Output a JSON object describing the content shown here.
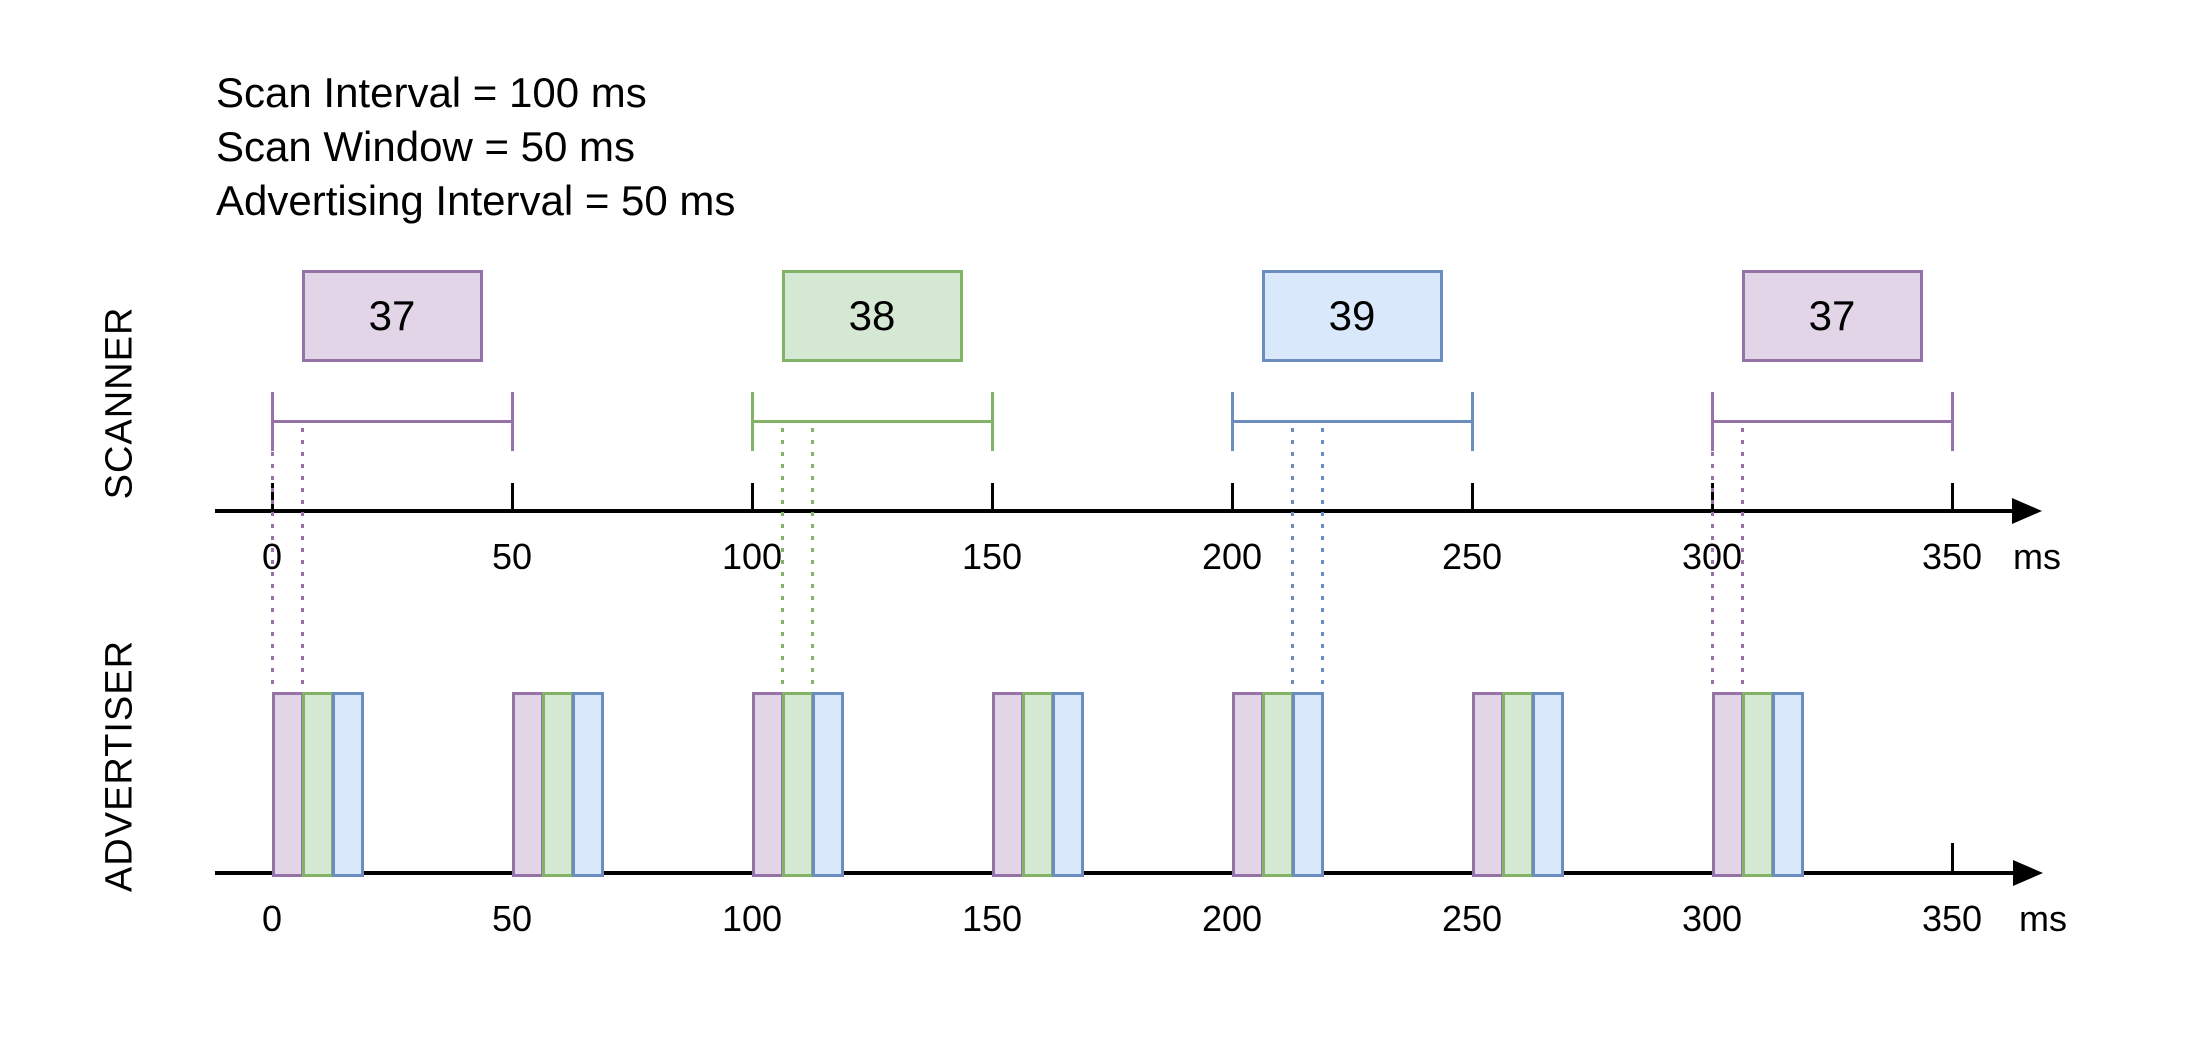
{
  "parameters": {
    "lines": [
      "Scan Interval = 100 ms",
      "Scan Window = 50 ms",
      "Advertising Interval = 50 ms"
    ]
  },
  "colors": {
    "purple": {
      "stroke": "#9673a6",
      "fill": "#e1d5e7"
    },
    "green": {
      "stroke": "#82b366",
      "fill": "#d5e8d4"
    },
    "blue": {
      "stroke": "#6c8ebf",
      "fill": "#dae8fc"
    },
    "axis": "#000000"
  },
  "scanner": {
    "label": "SCANNER",
    "axis": {
      "unit": "ms",
      "ticks_ms": [
        0,
        50,
        100,
        150,
        200,
        250,
        300,
        350
      ]
    },
    "scan_events": [
      {
        "channel": "37",
        "color": "purple",
        "window_start_ms": 0,
        "window_end_ms": 50
      },
      {
        "channel": "38",
        "color": "green",
        "window_start_ms": 100,
        "window_end_ms": 150
      },
      {
        "channel": "39",
        "color": "blue",
        "window_start_ms": 200,
        "window_end_ms": 250
      },
      {
        "channel": "37",
        "color": "purple",
        "window_start_ms": 300,
        "window_end_ms": 350
      }
    ]
  },
  "advertiser": {
    "label": "ADVERTISER",
    "axis": {
      "unit": "ms",
      "ticks_ms": [
        0,
        50,
        100,
        150,
        200,
        250,
        300,
        350
      ],
      "visible_ticks_ms": [
        350
      ]
    },
    "event_start_times_ms": [
      0,
      50,
      100,
      150,
      200,
      250,
      300
    ],
    "packets_per_event": [
      {
        "channel": "37",
        "color": "purple"
      },
      {
        "channel": "38",
        "color": "green"
      },
      {
        "channel": "39",
        "color": "blue"
      }
    ],
    "packet_duration_ms": 6.25
  },
  "sync_markers": [
    {
      "color": "purple",
      "event_start_ms": 0,
      "packet_index": 0
    },
    {
      "color": "green",
      "event_start_ms": 100,
      "packet_index": 1
    },
    {
      "color": "blue",
      "event_start_ms": 200,
      "packet_index": 2
    },
    {
      "color": "purple",
      "event_start_ms": 300,
      "packet_index": 0
    }
  ]
}
